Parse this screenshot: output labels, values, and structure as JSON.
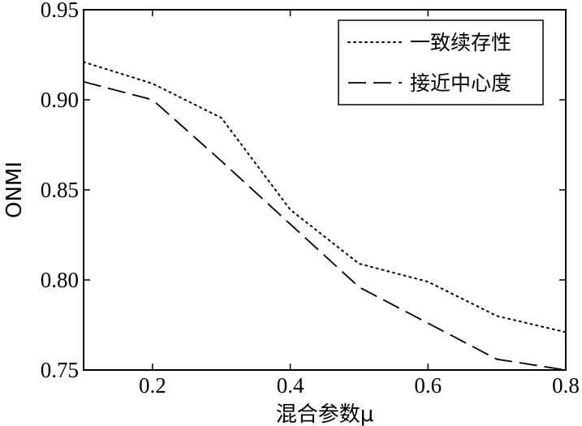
{
  "chart_data": {
    "type": "line",
    "title": "",
    "xlabel": "混合参数μ",
    "ylabel": "ONMI",
    "xlim": [
      0.1,
      0.8
    ],
    "ylim": [
      0.75,
      0.95
    ],
    "xticks": [
      0.2,
      0.4,
      0.6,
      0.8
    ],
    "xtick_labels": [
      "0.2",
      "0.4",
      "0.6",
      "0.8"
    ],
    "yticks": [
      0.75,
      0.8,
      0.85,
      0.9,
      0.95
    ],
    "ytick_labels": [
      "0.75",
      "0.80",
      "0.85",
      "0.90",
      "0.95"
    ],
    "grid": false,
    "legend_position": "top-right",
    "x": [
      0.1,
      0.2,
      0.3,
      0.4,
      0.5,
      0.6,
      0.7,
      0.8
    ],
    "series": [
      {
        "name": "一致续存性",
        "style": "dotted",
        "color": "#000000",
        "values": [
          0.921,
          0.909,
          0.89,
          0.839,
          0.809,
          0.799,
          0.78,
          0.771
        ]
      },
      {
        "name": "接近中心度",
        "style": "dashed",
        "color": "#000000",
        "values": [
          0.91,
          0.9,
          0.866,
          0.831,
          0.796,
          0.776,
          0.756,
          0.75
        ]
      }
    ]
  }
}
